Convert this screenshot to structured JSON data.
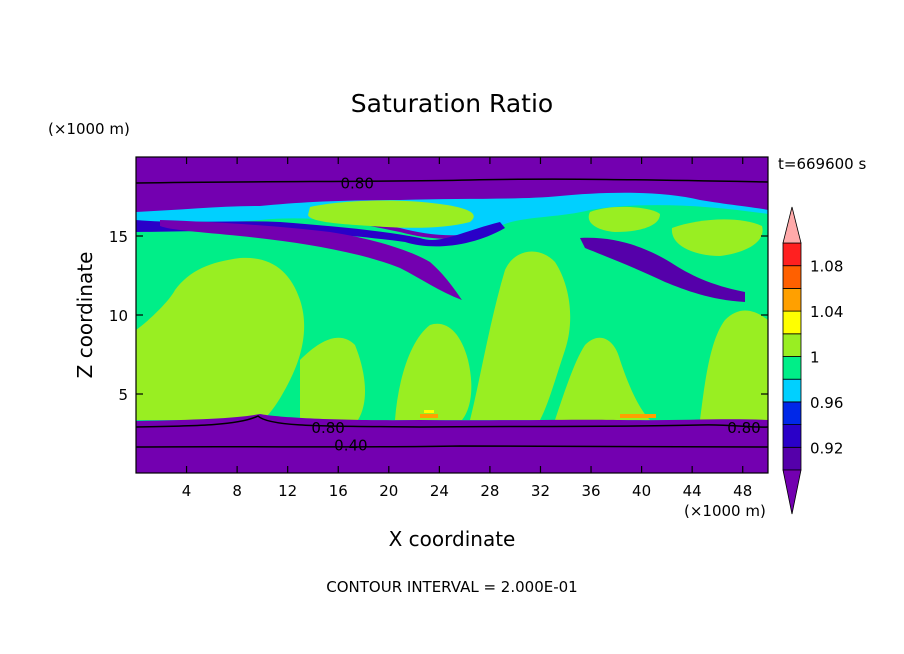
{
  "chart_data": {
    "type": "heatmap",
    "title": "Saturation Ratio",
    "xlabel": "X coordinate",
    "ylabel": "Z coordinate",
    "x_unit": "(×1000 m)",
    "y_unit": "(×1000 m)",
    "time_label": "t=669600 s",
    "footer": "CONTOUR INTERVAL = 2.000E-01",
    "xlim": [
      0,
      50
    ],
    "ylim": [
      0,
      20
    ],
    "xticks": [
      "4",
      "8",
      "12",
      "16",
      "20",
      "24",
      "28",
      "32",
      "36",
      "40",
      "44",
      "48"
    ],
    "xtick_values": [
      4,
      8,
      12,
      16,
      20,
      24,
      28,
      32,
      36,
      40,
      44,
      48
    ],
    "yticks": [
      "5",
      "10",
      "15"
    ],
    "ytick_values": [
      5,
      10,
      15
    ],
    "colorbar": {
      "labels": [
        "0.92",
        "0.96",
        "1",
        "1.04",
        "1.08"
      ],
      "label_values": [
        0.92,
        0.96,
        1.0,
        1.04,
        1.08
      ],
      "levels": [
        0.9,
        0.92,
        0.94,
        0.96,
        0.98,
        1.0,
        1.02,
        1.04,
        1.06,
        1.08,
        1.1
      ],
      "colors": [
        "#5500aa",
        "#2a00c8",
        "#0028e8",
        "#00d0ff",
        "#00ee88",
        "#99ee22",
        "#ffff00",
        "#ffa000",
        "#ff6000",
        "#ff2020",
        "#ffaaaa"
      ],
      "below_color": "#7300b0",
      "above_color": "#ffaaaa"
    },
    "contour_labels": [
      {
        "text": "0.80",
        "x": 17.5,
        "y": 18.4
      },
      {
        "text": "0.80",
        "x": 15.2,
        "y": 2.9
      },
      {
        "text": "0.80",
        "x": 48.1,
        "y": 2.9
      },
      {
        "text": "0.40",
        "x": 17.0,
        "y": 1.8
      }
    ],
    "regions": [
      {
        "name": "lower-dry-layer",
        "level": "<0.90",
        "z_range": [
          0,
          3.2
        ]
      },
      {
        "name": "mid-troposphere",
        "level": "0.98-1.00",
        "z_range": [
          3.2,
          16
        ]
      },
      {
        "name": "supersaturated-columns",
        "level": "1.00-1.02",
        "z_range": [
          3.4,
          13
        ]
      },
      {
        "name": "upper-dry-layer",
        "level": "<0.90",
        "z_range": [
          17.5,
          20
        ]
      }
    ]
  }
}
